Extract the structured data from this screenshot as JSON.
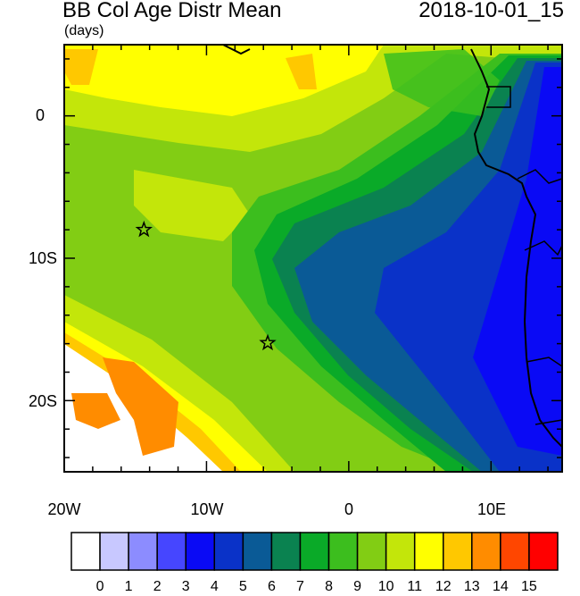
{
  "header": {
    "title": "BB Col Age Distr Mean",
    "units": "(days)",
    "datetime": "2018-10-01_15"
  },
  "axes": {
    "y_labels": [
      "0",
      "10S",
      "20S"
    ],
    "x_labels": [
      "20W",
      "10W",
      "0",
      "10E"
    ]
  },
  "stations": [
    {
      "lon": -14.4,
      "lat": -8.0
    },
    {
      "lon": -5.7,
      "lat": -15.95
    }
  ],
  "colorbar": {
    "labels": [
      "0",
      "1",
      "2",
      "3",
      "4",
      "5",
      "6",
      "7",
      "8",
      "9",
      "10",
      "11",
      "12",
      "13",
      "14",
      "15"
    ],
    "colors": [
      "#ffffff",
      "#c8c8ff",
      "#8c8cff",
      "#4646ff",
      "#0a0af5",
      "#0a32c8",
      "#0a5a96",
      "#0a8250",
      "#0aaa28",
      "#3cbe1e",
      "#82cd14",
      "#c3e60a",
      "#ffff00",
      "#ffc800",
      "#ff8c00",
      "#ff4600",
      "#ff0000"
    ]
  }
}
